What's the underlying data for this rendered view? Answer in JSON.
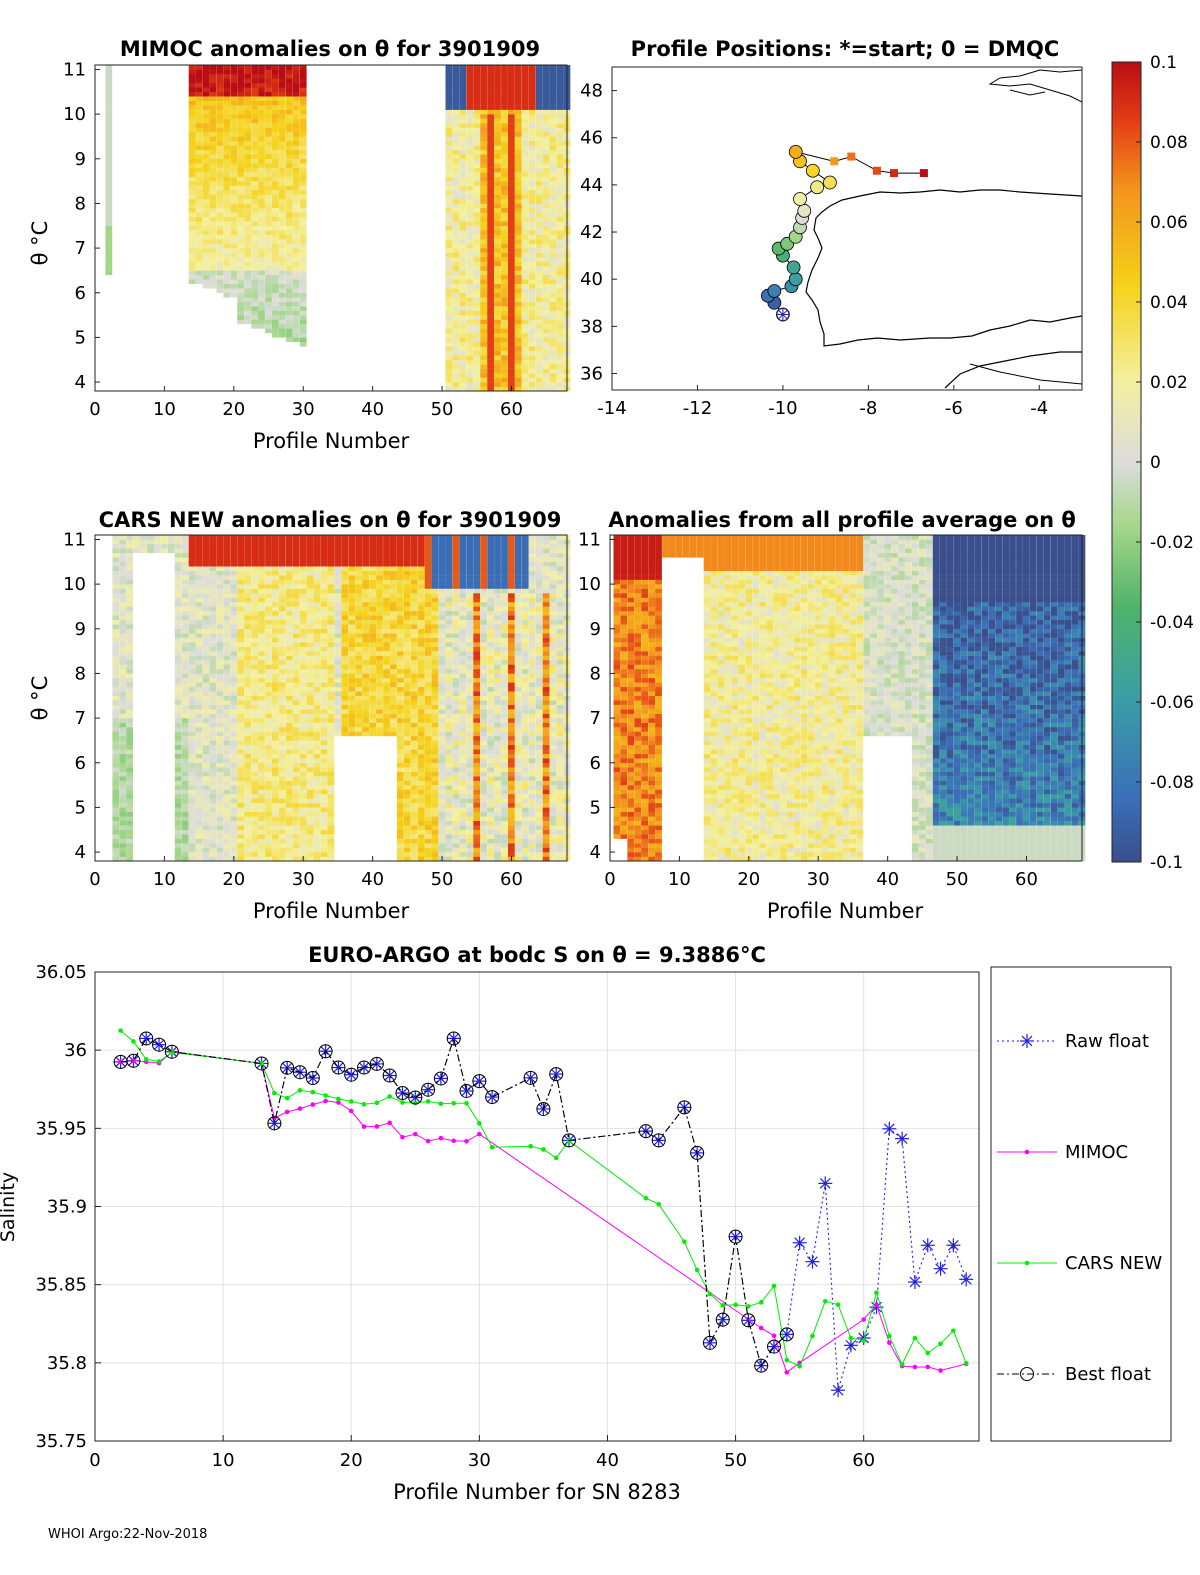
{
  "chart_data": [
    {
      "type": "heatmap",
      "title": "MIMOC anomalies on θ  for 3901909",
      "xlabel": "Profile Number",
      "ylabel": "θ °C",
      "xlim": [
        0,
        68
      ],
      "ylim": [
        3.8,
        11.1
      ],
      "xticks": [
        "0",
        "10",
        "20",
        "30",
        "40",
        "50",
        "60"
      ],
      "yticks": [
        "4",
        "5",
        "6",
        "7",
        "8",
        "9",
        "10",
        "11"
      ]
    },
    {
      "type": "scatter",
      "title": "Profile Positions: *=start; 0 = DMQC",
      "xlim": [
        -14,
        -3
      ],
      "ylim": [
        35.3,
        49
      ],
      "xticks": [
        "-14",
        "-12",
        "-10",
        "-8",
        "-6",
        "-4"
      ],
      "yticks": [
        "36",
        "38",
        "40",
        "42",
        "44",
        "46",
        "48"
      ],
      "start_lon": -10.0,
      "start_lat": 38.5,
      "points": [
        [
          -10.0,
          38.5
        ],
        [
          -10.2,
          39.0
        ],
        [
          -10.35,
          39.3
        ],
        [
          -10.2,
          39.5
        ],
        [
          -9.8,
          39.7
        ],
        [
          -9.7,
          40.0
        ],
        [
          -9.75,
          40.5
        ],
        [
          -10.0,
          41.0
        ],
        [
          -10.1,
          41.3
        ],
        [
          -9.9,
          41.5
        ],
        [
          -9.7,
          41.8
        ],
        [
          -9.6,
          42.2
        ],
        [
          -9.55,
          42.6
        ],
        [
          -9.5,
          42.9
        ],
        [
          -9.6,
          43.4
        ],
        [
          -9.2,
          43.9
        ],
        [
          -8.9,
          44.1
        ],
        [
          -9.3,
          44.6
        ],
        [
          -9.6,
          45.0
        ],
        [
          -9.7,
          45.4
        ],
        [
          -8.8,
          45.0
        ],
        [
          -8.4,
          45.2
        ],
        [
          -7.8,
          44.6
        ],
        [
          -7.4,
          44.5
        ],
        [
          -6.7,
          44.5
        ]
      ]
    },
    {
      "type": "heatmap",
      "title": "CARS NEW anomalies on θ for 3901909",
      "xlabel": "Profile Number",
      "ylabel": "θ °C",
      "xlim": [
        0,
        68
      ],
      "ylim": [
        3.8,
        11.1
      ],
      "xticks": [
        "0",
        "10",
        "20",
        "30",
        "40",
        "50",
        "60"
      ],
      "yticks": [
        "4",
        "5",
        "6",
        "7",
        "8",
        "9",
        "10",
        "11"
      ]
    },
    {
      "type": "heatmap",
      "title": "Anomalies from all profile average on θ",
      "xlabel": "Profile Number",
      "xlim": [
        0,
        68
      ],
      "ylim": [
        3.8,
        11.1
      ],
      "xticks": [
        "0",
        "10",
        "20",
        "30",
        "40",
        "50",
        "60"
      ],
      "yticks": [
        "4",
        "5",
        "6",
        "7",
        "8",
        "9",
        "10",
        "11"
      ]
    },
    {
      "type": "colorbar",
      "range": [
        -0.1,
        0.1
      ],
      "ticks": [
        "0.1",
        "0.08",
        "0.06",
        "0.04",
        "0.02",
        "0",
        "-0.02",
        "-0.04",
        "-0.06",
        "-0.08",
        "-0.1"
      ]
    },
    {
      "type": "line",
      "title": "EURO-ARGO at bodc S on θ = 9.3886°C",
      "xlabel": "Profile Number for SN 8283",
      "ylabel": "Salinity",
      "xlim": [
        0,
        69
      ],
      "ylim": [
        35.75,
        36.05
      ],
      "xticks": [
        "0",
        "10",
        "20",
        "30",
        "40",
        "50",
        "60"
      ],
      "yticks": [
        "36.05",
        "36",
        "35.95",
        "35.9",
        "35.85",
        "35.8",
        "35.75"
      ],
      "grid": true,
      "legend_position": "outside-right",
      "series": [
        {
          "name": "Raw float",
          "color": "#2020e0",
          "style": "dotted",
          "marker": "star",
          "x": [
            2,
            3,
            4,
            5,
            6,
            13,
            14,
            15,
            16,
            17,
            18,
            19,
            20,
            21,
            22,
            23,
            24,
            25,
            26,
            27,
            28,
            29,
            30,
            31,
            34,
            35,
            36,
            37,
            43,
            44,
            46,
            47,
            48,
            49,
            50,
            51,
            52,
            53,
            54,
            55,
            56,
            57,
            58,
            59,
            60,
            61,
            62,
            63,
            64,
            65,
            66,
            67,
            68
          ],
          "values": [
            35.9925,
            35.9932,
            36.0075,
            36.0035,
            35.999,
            35.9915,
            35.9532,
            35.9887,
            35.9859,
            35.9822,
            35.9993,
            35.9889,
            35.9843,
            35.9889,
            35.9912,
            35.9838,
            35.9726,
            35.9697,
            35.9747,
            35.9819,
            36.0075,
            35.9739,
            35.9802,
            35.97,
            35.9823,
            35.9624,
            35.9847,
            35.9423,
            35.9482,
            35.9423,
            35.9634,
            35.9343,
            35.8128,
            35.8276,
            35.8807,
            35.8272,
            35.7982,
            35.8104,
            35.8182,
            35.8768,
            35.8647,
            35.9148,
            35.7825,
            35.8112,
            35.8159,
            35.8356,
            35.9497,
            35.9434,
            35.8517,
            35.8752,
            35.8602,
            35.8752,
            35.8534
          ]
        },
        {
          "name": "MIMOC",
          "color": "#ff00ff",
          "style": "solid",
          "marker": "dot",
          "x": [
            2,
            3,
            4,
            5,
            6,
            13,
            14,
            15,
            16,
            17,
            18,
            19,
            20,
            21,
            22,
            23,
            24,
            25,
            26,
            27,
            28,
            29,
            30,
            52,
            53,
            54,
            55,
            60,
            61,
            62,
            63,
            64,
            65,
            66,
            68
          ],
          "values": [
            35.9925,
            35.9932,
            35.9925,
            35.9917,
            35.999,
            35.9915,
            35.9565,
            35.9605,
            35.9626,
            35.9652,
            35.9675,
            35.9665,
            35.9611,
            35.9511,
            35.9512,
            35.9535,
            35.9443,
            35.9463,
            35.9418,
            35.9437,
            35.942,
            35.9417,
            35.9463,
            35.8223,
            35.8173,
            35.7939,
            35.8,
            35.8277,
            35.8372,
            35.8129,
            35.7979,
            35.7973,
            35.7974,
            35.7951,
            35.7993
          ]
        },
        {
          "name": "CARS NEW",
          "color": "#00ee00",
          "style": "solid",
          "marker": "dot",
          "x": [
            2,
            3,
            4,
            5,
            6,
            13,
            14,
            15,
            16,
            17,
            18,
            19,
            20,
            21,
            22,
            23,
            24,
            25,
            26,
            27,
            28,
            29,
            30,
            31,
            34,
            35,
            36,
            37,
            43,
            44,
            46,
            47,
            48,
            49,
            50,
            51,
            52,
            53,
            54,
            55,
            56,
            57,
            58,
            59,
            60,
            61,
            62,
            63,
            64,
            65,
            66,
            67,
            68
          ],
          "values": [
            36.0125,
            36.0056,
            35.9941,
            35.9928,
            35.9986,
            35.9915,
            35.9726,
            35.9693,
            35.9743,
            35.9732,
            35.971,
            35.9688,
            35.9672,
            35.9654,
            35.9663,
            35.9704,
            35.9665,
            35.9662,
            35.9672,
            35.9657,
            35.966,
            35.966,
            35.9532,
            35.9379,
            35.9385,
            35.9365,
            35.9311,
            35.942,
            35.9053,
            35.9015,
            35.8775,
            35.8594,
            35.844,
            35.8367,
            35.8371,
            35.8361,
            35.8387,
            35.8492,
            35.8018,
            35.7978,
            35.8172,
            35.8394,
            35.8372,
            35.8159,
            35.8142,
            35.8449,
            35.8172,
            35.799,
            35.8158,
            35.8063,
            35.8122,
            35.8205,
            35.7998
          ]
        },
        {
          "name": "Best float",
          "color": "#000000",
          "style": "dashdot",
          "marker": "circle",
          "x": [
            2,
            3,
            4,
            5,
            6,
            13,
            14,
            15,
            16,
            17,
            18,
            19,
            20,
            21,
            22,
            23,
            24,
            25,
            26,
            27,
            28,
            29,
            30,
            31,
            34,
            35,
            36,
            37,
            43,
            44,
            46,
            47,
            48,
            49,
            50,
            51,
            52,
            53,
            54
          ],
          "values": [
            35.9925,
            35.9932,
            36.0075,
            36.0035,
            35.999,
            35.9915,
            35.9532,
            35.9887,
            35.9859,
            35.9822,
            35.9993,
            35.9889,
            35.9843,
            35.9889,
            35.9912,
            35.9838,
            35.9726,
            35.9697,
            35.9747,
            35.9819,
            36.0075,
            35.9739,
            35.9802,
            35.97,
            35.9823,
            35.9624,
            35.9847,
            35.9423,
            35.9482,
            35.9423,
            35.9634,
            35.9343,
            35.8128,
            35.8276,
            35.8807,
            35.8272,
            35.7982,
            35.8104,
            35.8182
          ]
        }
      ]
    }
  ],
  "footer": "WHOI Argo:22-Nov-2018"
}
